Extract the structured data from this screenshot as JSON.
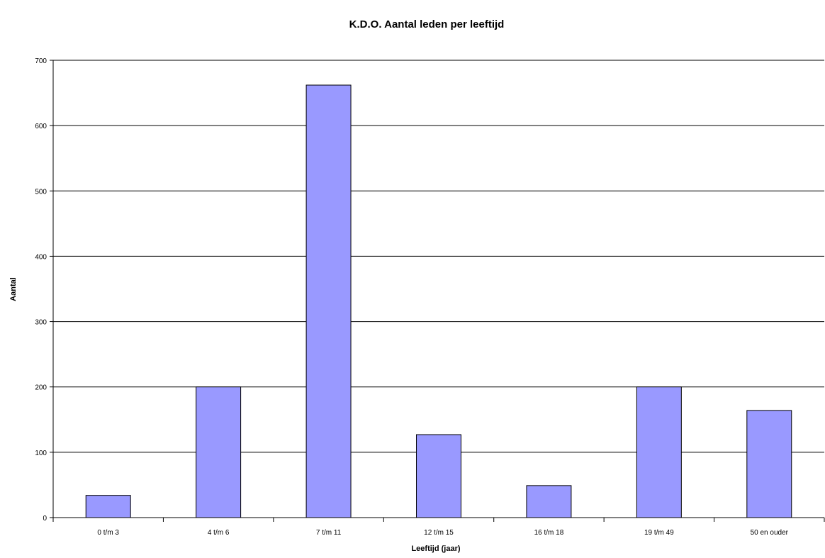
{
  "chart_data": {
    "type": "bar",
    "title": "K.D.O. Aantal leden per leeftijd",
    "xlabel": "Leeftijd (jaar)",
    "ylabel": "Aantal",
    "categories": [
      "0 t/m 3",
      "4 t/m 6",
      "7 t/m 11",
      "12 t/m 15",
      "16 t/m 18",
      "19 t/m 49",
      "50 en ouder"
    ],
    "values": [
      34,
      200,
      662,
      127,
      49,
      200,
      164
    ],
    "ylim": [
      0,
      700
    ],
    "yticks": [
      0,
      100,
      200,
      300,
      400,
      500,
      600,
      700
    ],
    "grid": true,
    "legend": "none",
    "colors": {
      "bar": "#9999ff",
      "edge": "#000000"
    }
  }
}
